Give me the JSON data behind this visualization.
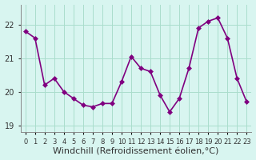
{
  "x": [
    0,
    1,
    2,
    3,
    4,
    5,
    6,
    7,
    8,
    9,
    10,
    11,
    12,
    13,
    14,
    15,
    16,
    17,
    18,
    19,
    20,
    21,
    22,
    23
  ],
  "y": [
    21.8,
    21.6,
    20.2,
    20.4,
    20.0,
    19.8,
    19.6,
    19.55,
    19.65,
    19.65,
    20.3,
    21.05,
    20.7,
    20.6,
    19.9,
    19.4,
    19.8,
    20.7,
    21.9,
    22.1,
    22.2,
    21.6,
    20.4,
    19.7
  ],
  "line_color": "#800080",
  "marker": "D",
  "marker_size": 3,
  "bg_color": "#d8f5f0",
  "grid_color": "#aaddcc",
  "ylabel_ticks": [
    19,
    20,
    21,
    22
  ],
  "ylim": [
    18.8,
    22.6
  ],
  "xlim": [
    -0.5,
    23.5
  ],
  "xlabel": "Windchill (Refroidissement éolien,°C)",
  "xlabel_fontsize": 8,
  "tick_fontsize": 7,
  "line_width": 1.2
}
